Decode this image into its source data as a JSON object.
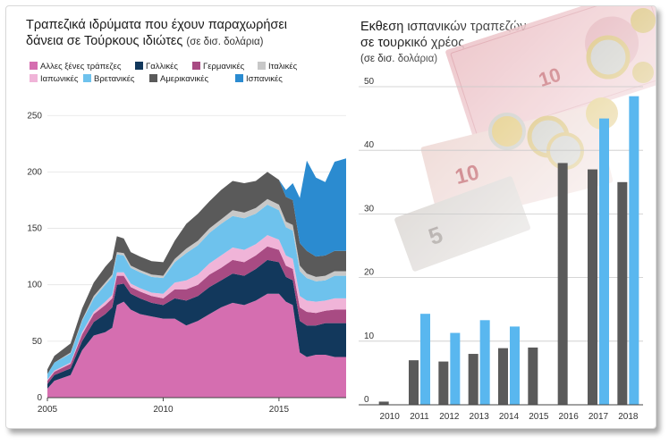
{
  "left": {
    "title_line1": "Τραπεζικά ιδρύματα που έχουν παραχωρήσει",
    "title_line2": "δάνεια σε Τούρκους ιδιώτες",
    "unit": "(σε δισ. δολάρια)"
  },
  "right": {
    "title_line1": "Εκθεση ισπανικών τραπεζών",
    "title_line2": "σε τουρκικό χρέος",
    "unit": "(σε δισ. δολάρια)"
  },
  "chart_data": [
    {
      "type": "area",
      "stacked": true,
      "title": "Τραπεζικά ιδρύματα που έχουν παραχωρήσει δάνεια σε Τούρκους ιδιώτες",
      "ylim": [
        0,
        270
      ],
      "yticks": [
        0,
        50,
        100,
        150,
        200,
        250
      ],
      "xlim": [
        2005,
        2017.9
      ],
      "xticks": [
        2005,
        2010,
        2015
      ],
      "legend_placement": "top",
      "x": [
        2005,
        2005.3,
        2006,
        2006.5,
        2007,
        2007.5,
        2007.8,
        2008,
        2008.3,
        2008.6,
        2009,
        2009.5,
        2010,
        2010.5,
        2011,
        2011.5,
        2012,
        2012.5,
        2013,
        2013.5,
        2014,
        2014.5,
        2015,
        2015.3,
        2015.6,
        2015.9,
        2016.2,
        2016.6,
        2017,
        2017.4,
        2017.9
      ],
      "series": [
        {
          "name": "Αλλες ξένες τράπεζες",
          "color": "#d56eb0",
          "values": [
            8,
            15,
            20,
            42,
            55,
            58,
            62,
            82,
            85,
            78,
            74,
            72,
            70,
            70,
            64,
            68,
            74,
            80,
            84,
            82,
            86,
            92,
            92,
            85,
            82,
            40,
            36,
            38,
            38,
            36,
            36
          ]
        },
        {
          "name": "Γαλλικές",
          "color": "#12385c",
          "values": [
            4,
            5,
            6,
            8,
            12,
            16,
            18,
            18,
            16,
            14,
            14,
            12,
            12,
            18,
            22,
            22,
            24,
            24,
            26,
            26,
            28,
            30,
            28,
            22,
            22,
            28,
            28,
            26,
            28,
            30,
            30
          ]
        },
        {
          "name": "Γερμανικές",
          "color": "#a84b83",
          "values": [
            3,
            3,
            4,
            6,
            7,
            8,
            8,
            8,
            7,
            6,
            6,
            6,
            6,
            8,
            10,
            10,
            11,
            11,
            12,
            12,
            12,
            12,
            11,
            10,
            10,
            12,
            12,
            11,
            11,
            12,
            12
          ]
        },
        {
          "name": "Ιαπωνικές",
          "color": "#f0b4d8",
          "values": [
            1,
            1,
            1,
            2,
            2,
            3,
            3,
            3,
            3,
            3,
            3,
            3,
            4,
            6,
            8,
            9,
            10,
            11,
            11,
            11,
            10,
            10,
            9,
            9,
            9,
            10,
            10,
            10,
            9,
            10,
            10
          ]
        },
        {
          "name": "Βρετανικές",
          "color": "#6ec2ed",
          "values": [
            5,
            7,
            8,
            10,
            12,
            15,
            16,
            16,
            15,
            14,
            14,
            14,
            14,
            18,
            24,
            26,
            27,
            28,
            28,
            28,
            27,
            27,
            26,
            25,
            25,
            22,
            20,
            18,
            18,
            20,
            20
          ]
        },
        {
          "name": "Ιταλικές",
          "color": "#c8c8c8",
          "values": [
            0,
            0,
            1,
            1,
            2,
            2,
            2,
            2,
            2,
            2,
            2,
            2,
            2,
            3,
            4,
            4,
            4,
            4,
            5,
            5,
            5,
            5,
            5,
            5,
            5,
            5,
            4,
            4,
            4,
            4,
            4
          ]
        },
        {
          "name": "Αμερικανικές",
          "color": "#5a5a5a",
          "values": [
            4,
            6,
            8,
            10,
            12,
            14,
            14,
            14,
            13,
            12,
            12,
            12,
            12,
            16,
            22,
            24,
            24,
            26,
            26,
            26,
            24,
            24,
            22,
            22,
            22,
            20,
            20,
            18,
            18,
            18,
            18
          ]
        },
        {
          "name": "Ισπανικές",
          "color": "#2b8bd0",
          "values": [
            0,
            0,
            0,
            0,
            0,
            0,
            0,
            0,
            0,
            0,
            0,
            0,
            0,
            0,
            0,
            0,
            0,
            0,
            0,
            0,
            0,
            0,
            0,
            6,
            15,
            40,
            80,
            70,
            65,
            79,
            82
          ]
        }
      ]
    },
    {
      "type": "bar",
      "title": "Εκθεση ισπανικών τραπεζών σε τουρκικό χρέος",
      "categories": [
        "2010",
        "2011",
        "2012",
        "2013",
        "2014",
        "2015",
        "2016",
        "2017",
        "2018"
      ],
      "ylim": [
        0,
        50
      ],
      "yticks": [
        0,
        10,
        20,
        30,
        40,
        50
      ],
      "series": [
        {
          "color": "#5a5a5a",
          "values": [
            0.5,
            7,
            6.8,
            8,
            8.9,
            9,
            38,
            37,
            35
          ]
        },
        {
          "color": "#59b7ef",
          "values": [
            null,
            14.3,
            11.3,
            13.3,
            12.3,
            null,
            null,
            45,
            48.5
          ]
        }
      ]
    }
  ]
}
